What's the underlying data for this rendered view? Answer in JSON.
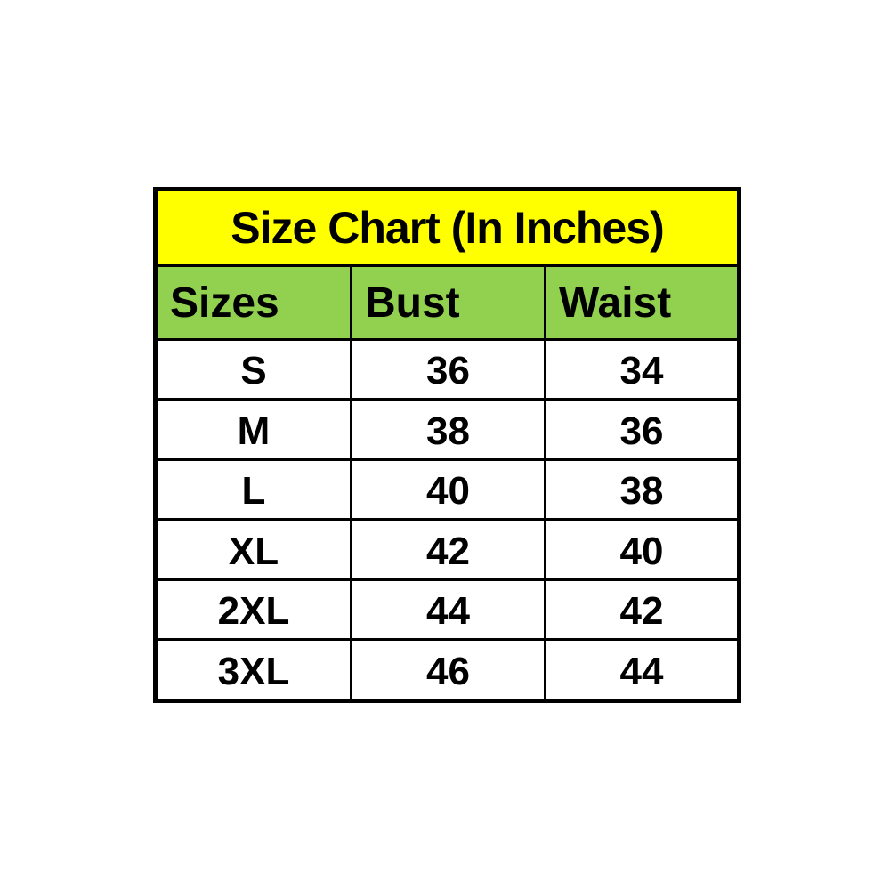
{
  "size_chart": {
    "title": "Size Chart (In Inches)",
    "columns": [
      "Sizes",
      "Bust",
      "Waist"
    ],
    "rows": [
      [
        "S",
        "36",
        "34"
      ],
      [
        "M",
        "38",
        "36"
      ],
      [
        "L",
        "40",
        "38"
      ],
      [
        "XL",
        "42",
        "40"
      ],
      [
        "2XL",
        "44",
        "42"
      ],
      [
        "3XL",
        "46",
        "44"
      ]
    ],
    "colors": {
      "title_background": "#FFFF00",
      "header_background": "#92D050",
      "body_background": "#FFFFFF",
      "border": "#000000",
      "text": "#000000"
    }
  },
  "chart_data": {
    "type": "table",
    "title": "Size Chart (In Inches)",
    "columns": [
      "Sizes",
      "Bust",
      "Waist"
    ],
    "rows": [
      {
        "size": "S",
        "bust": 36,
        "waist": 34
      },
      {
        "size": "M",
        "bust": 38,
        "waist": 36
      },
      {
        "size": "L",
        "bust": 40,
        "waist": 38
      },
      {
        "size": "XL",
        "bust": 42,
        "waist": 40
      },
      {
        "size": "2XL",
        "bust": 44,
        "waist": 42
      },
      {
        "size": "3XL",
        "bust": 46,
        "waist": 44
      }
    ],
    "units": "inches",
    "layout_hints": {
      "title_row_bg": "#FFFF00",
      "header_row_bg": "#92D050",
      "data_row_bg": "#FFFFFF",
      "borders": "thick black grid",
      "header_align": "left",
      "data_align": "center"
    }
  }
}
